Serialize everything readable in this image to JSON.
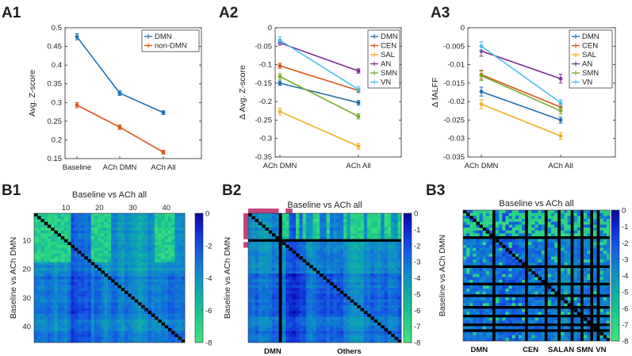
{
  "panels": {
    "A1": "A1",
    "A2": "A2",
    "A3": "A3",
    "B1": "B1",
    "B2": "B2",
    "B3": "B3"
  },
  "chart_data": [
    {
      "id": "A1",
      "type": "line",
      "categories": [
        "Baseline",
        "ACh DMN",
        "ACh All"
      ],
      "ylabel": "Avg. Z-score",
      "ylim": [
        0.15,
        0.5
      ],
      "yticks": [
        "0.15",
        "0.2",
        "0.25",
        "0.3",
        "0.35",
        "0.4",
        "0.45",
        "0.5"
      ],
      "series": [
        {
          "name": "DMN",
          "color": "#1f6fb0",
          "values": [
            0.476,
            0.325,
            0.273
          ],
          "errors": [
            0.008,
            0.006,
            0.005
          ]
        },
        {
          "name": "non-DMN",
          "color": "#d9541a",
          "values": [
            0.293,
            0.234,
            0.167
          ],
          "errors": [
            0.007,
            0.006,
            0.005
          ]
        }
      ]
    },
    {
      "id": "A2",
      "type": "line",
      "categories": [
        "ACh DMN",
        "ACh All"
      ],
      "ylabel": "Δ Avg. Z-score",
      "ylim": [
        -0.35,
        0
      ],
      "yticks": [
        "-0.35",
        "-0.3",
        "-0.25",
        "-0.2",
        "-0.15",
        "-0.1",
        "-0.05",
        "0"
      ],
      "series": [
        {
          "name": "DMN",
          "color": "#1f6fb0",
          "values": [
            -0.15,
            -0.203
          ],
          "errors": [
            0.006,
            0.006
          ]
        },
        {
          "name": "CEN",
          "color": "#d9541a",
          "values": [
            -0.103,
            -0.17
          ],
          "errors": [
            0.007,
            0.006
          ]
        },
        {
          "name": "SAL",
          "color": "#eeb11f",
          "values": [
            -0.227,
            -0.321
          ],
          "errors": [
            0.009,
            0.008
          ]
        },
        {
          "name": "AN",
          "color": "#7e2f8e",
          "values": [
            -0.041,
            -0.117
          ],
          "errors": [
            0.006,
            0.006
          ]
        },
        {
          "name": "SMN",
          "color": "#77ac30",
          "values": [
            -0.132,
            -0.24
          ],
          "errors": [
            0.008,
            0.007
          ]
        },
        {
          "name": "VN",
          "color": "#4dbeee",
          "values": [
            -0.034,
            -0.167
          ],
          "errors": [
            0.009,
            0.008
          ]
        }
      ]
    },
    {
      "id": "A3",
      "type": "line",
      "categories": [
        "ACh DMN",
        "ACh All"
      ],
      "ylabel": "Δ fALFF",
      "ylim": [
        -0.035,
        0
      ],
      "yticks": [
        "-0.035",
        "-0.03",
        "-0.025",
        "-0.02",
        "-0.015",
        "-0.01",
        "-0.005",
        "0"
      ],
      "series": [
        {
          "name": "DMN",
          "color": "#1f6fb0",
          "values": [
            -0.0173,
            -0.025
          ],
          "errors": [
            0.0012,
            0.0008
          ]
        },
        {
          "name": "CEN",
          "color": "#d9541a",
          "values": [
            -0.0127,
            -0.0215
          ],
          "errors": [
            0.0012,
            0.0008
          ]
        },
        {
          "name": "SAL",
          "color": "#eeb11f",
          "values": [
            -0.0207,
            -0.0293
          ],
          "errors": [
            0.0012,
            0.0009
          ]
        },
        {
          "name": "AN",
          "color": "#7e2f8e",
          "values": [
            -0.0063,
            -0.0138
          ],
          "errors": [
            0.0014,
            0.0012
          ]
        },
        {
          "name": "SMN",
          "color": "#77ac30",
          "values": [
            -0.013,
            -0.0225
          ],
          "errors": [
            0.0013,
            0.0009
          ]
        },
        {
          "name": "VN",
          "color": "#4dbeee",
          "values": [
            -0.005,
            -0.0203
          ],
          "errors": [
            0.0012,
            0.0008
          ]
        }
      ]
    },
    {
      "id": "B1",
      "type": "heatmap",
      "n": 45,
      "title": "Baseline vs ACh all",
      "ylabel": "Baseline vs ACh DMN",
      "xticks": [
        "10",
        "20",
        "30",
        "40"
      ],
      "yticks": [
        "10",
        "20",
        "30",
        "40"
      ],
      "colorbar": {
        "ticks": [
          "0",
          "-2",
          "-4",
          "-6",
          "-8"
        ],
        "range": [
          -8,
          0
        ]
      }
    },
    {
      "id": "B2",
      "type": "heatmap",
      "n": 45,
      "title": "Baseline vs ACh all",
      "ylabel": "Baseline vs ACh DMN",
      "groups": [
        "DMN",
        "Others"
      ],
      "colorbar": {
        "ticks": [
          "0",
          "-1",
          "-2",
          "-3",
          "-4",
          "-5",
          "-6",
          "-7",
          "-8"
        ],
        "range": [
          -8,
          0
        ]
      }
    },
    {
      "id": "B3",
      "type": "heatmap",
      "n": 45,
      "title": "Baseline vs ACh all",
      "ylabel": "Baseline vs ACh DMN",
      "groups": [
        "DMN",
        "CEN",
        "SAL",
        "AN",
        "SMN",
        "VN"
      ],
      "colorbar": {
        "ticks": [
          "0",
          "-1",
          "-2",
          "-3",
          "-4",
          "-5",
          "-6",
          "-7",
          "-8"
        ],
        "range": [
          -8,
          0
        ]
      }
    }
  ]
}
